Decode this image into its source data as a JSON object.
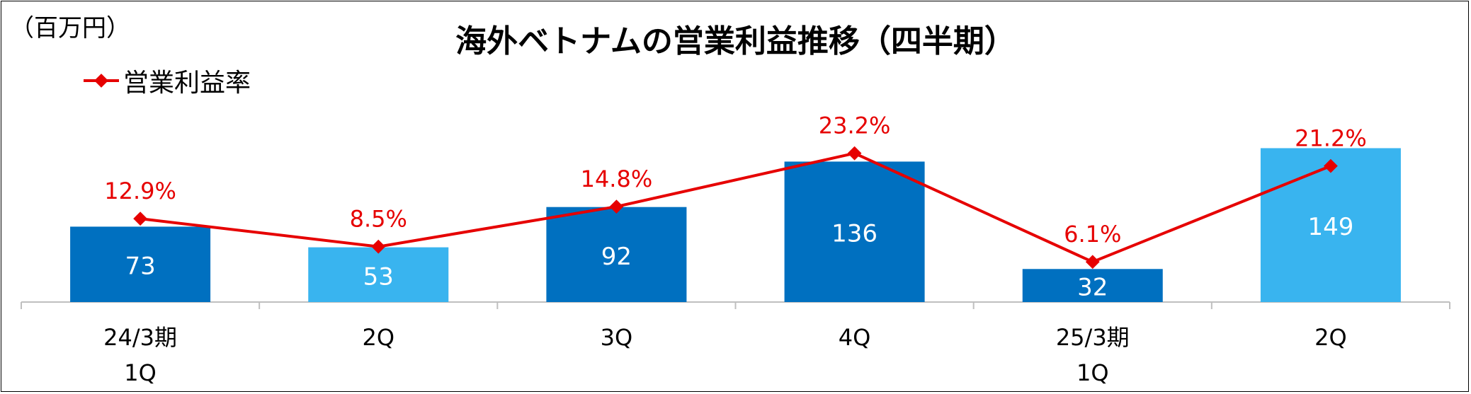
{
  "unit_label": "（百万円）",
  "chart_data": {
    "type": "bar",
    "title": "海外ベトナムの営業利益推移（四半期）",
    "categories": [
      [
        "24/3期",
        "1Q"
      ],
      [
        "2Q",
        ""
      ],
      [
        "3Q",
        ""
      ],
      [
        "4Q",
        ""
      ],
      [
        "25/3期",
        "1Q"
      ],
      [
        "2Q",
        ""
      ]
    ],
    "series": [
      {
        "type": "bar",
        "values": [
          73,
          53,
          92,
          136,
          32,
          149
        ],
        "data_labels": [
          "73",
          "53",
          "92",
          "136",
          "32",
          "149"
        ],
        "colors": [
          "#0070c0",
          "#39b4ef",
          "#0070c0",
          "#0070c0",
          "#0070c0",
          "#39b4ef"
        ]
      },
      {
        "name": "営業利益率",
        "type": "line",
        "values": [
          12.9,
          8.5,
          14.8,
          23.2,
          6.1,
          21.2
        ],
        "data_labels": [
          "12.9%",
          "8.5%",
          "14.8%",
          "23.2%",
          "6.1%",
          "21.2%"
        ],
        "color": "#e60000"
      }
    ],
    "legend_position": "top-left",
    "grid": false
  }
}
